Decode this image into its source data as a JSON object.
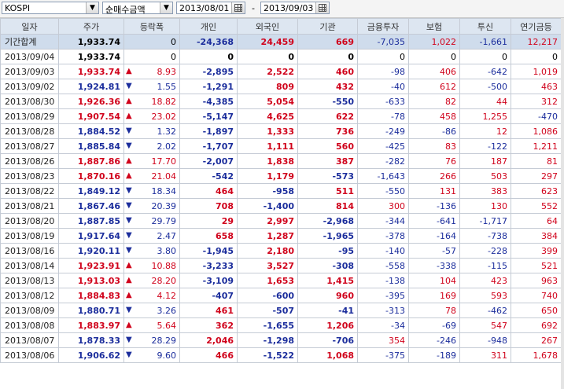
{
  "toolbar": {
    "market": "KOSPI",
    "metric": "순매수금액",
    "date_from": "2013/08/01",
    "date_sep": "-",
    "date_to": "2013/09/03"
  },
  "columns": [
    "일자",
    "주가",
    "등락폭",
    "개인",
    "외국인",
    "기관",
    "금융투자",
    "보험",
    "투신",
    "연기금등"
  ],
  "colors": {
    "up": "#d0021b",
    "down": "#1b2d9c",
    "header_bg": "#dde6f1",
    "total_bg": "#cfdcec"
  },
  "rows": [
    {
      "date": "기간합계",
      "price": "1,933.74",
      "price_dir": "none",
      "dir": "none",
      "chg": "0",
      "indiv": "-24,368",
      "foreign": "24,459",
      "inst": "669",
      "fin": "-7,035",
      "ins": "1,022",
      "trust": "-1,661",
      "pension": "12,217"
    },
    {
      "date": "2013/09/04",
      "price": "1,933.74",
      "price_dir": "none",
      "dir": "none",
      "chg": "0",
      "indiv": "0",
      "foreign": "0",
      "inst": "0",
      "fin": "0",
      "ins": "0",
      "trust": "0",
      "pension": "0"
    },
    {
      "date": "2013/09/03",
      "price": "1,933.74",
      "price_dir": "up",
      "dir": "up",
      "chg": "8.93",
      "indiv": "-2,895",
      "foreign": "2,522",
      "inst": "460",
      "fin": "-98",
      "ins": "406",
      "trust": "-642",
      "pension": "1,019"
    },
    {
      "date": "2013/09/02",
      "price": "1,924.81",
      "price_dir": "down",
      "dir": "down",
      "chg": "1.55",
      "indiv": "-1,291",
      "foreign": "809",
      "inst": "432",
      "fin": "-40",
      "ins": "612",
      "trust": "-500",
      "pension": "463"
    },
    {
      "date": "2013/08/30",
      "price": "1,926.36",
      "price_dir": "up",
      "dir": "up",
      "chg": "18.82",
      "indiv": "-4,385",
      "foreign": "5,054",
      "inst": "-550",
      "fin": "-633",
      "ins": "82",
      "trust": "44",
      "pension": "312"
    },
    {
      "date": "2013/08/29",
      "price": "1,907.54",
      "price_dir": "up",
      "dir": "up",
      "chg": "23.02",
      "indiv": "-5,147",
      "foreign": "4,625",
      "inst": "622",
      "fin": "-78",
      "ins": "458",
      "trust": "1,255",
      "pension": "-470"
    },
    {
      "date": "2013/08/28",
      "price": "1,884.52",
      "price_dir": "down",
      "dir": "down",
      "chg": "1.32",
      "indiv": "-1,897",
      "foreign": "1,333",
      "inst": "736",
      "fin": "-249",
      "ins": "-86",
      "trust": "12",
      "pension": "1,086"
    },
    {
      "date": "2013/08/27",
      "price": "1,885.84",
      "price_dir": "down",
      "dir": "down",
      "chg": "2.02",
      "indiv": "-1,707",
      "foreign": "1,111",
      "inst": "560",
      "fin": "-425",
      "ins": "83",
      "trust": "-122",
      "pension": "1,211"
    },
    {
      "date": "2013/08/26",
      "price": "1,887.86",
      "price_dir": "up",
      "dir": "up",
      "chg": "17.70",
      "indiv": "-2,007",
      "foreign": "1,838",
      "inst": "387",
      "fin": "-282",
      "ins": "76",
      "trust": "187",
      "pension": "81"
    },
    {
      "date": "2013/08/23",
      "price": "1,870.16",
      "price_dir": "up",
      "dir": "up",
      "chg": "21.04",
      "indiv": "-542",
      "foreign": "1,179",
      "inst": "-573",
      "fin": "-1,643",
      "ins": "266",
      "trust": "503",
      "pension": "297"
    },
    {
      "date": "2013/08/22",
      "price": "1,849.12",
      "price_dir": "down",
      "dir": "down",
      "chg": "18.34",
      "indiv": "464",
      "foreign": "-958",
      "inst": "511",
      "fin": "-550",
      "ins": "131",
      "trust": "383",
      "pension": "623"
    },
    {
      "date": "2013/08/21",
      "price": "1,867.46",
      "price_dir": "down",
      "dir": "down",
      "chg": "20.39",
      "indiv": "708",
      "foreign": "-1,400",
      "inst": "814",
      "fin": "300",
      "ins": "-136",
      "trust": "130",
      "pension": "552"
    },
    {
      "date": "2013/08/20",
      "price": "1,887.85",
      "price_dir": "down",
      "dir": "down",
      "chg": "29.79",
      "indiv": "29",
      "foreign": "2,997",
      "inst": "-2,968",
      "fin": "-344",
      "ins": "-641",
      "trust": "-1,717",
      "pension": "64"
    },
    {
      "date": "2013/08/19",
      "price": "1,917.64",
      "price_dir": "down",
      "dir": "down",
      "chg": "2.47",
      "indiv": "658",
      "foreign": "1,287",
      "inst": "-1,965",
      "fin": "-378",
      "ins": "-164",
      "trust": "-738",
      "pension": "384"
    },
    {
      "date": "2013/08/16",
      "price": "1,920.11",
      "price_dir": "down",
      "dir": "down",
      "chg": "3.80",
      "indiv": "-1,945",
      "foreign": "2,180",
      "inst": "-95",
      "fin": "-140",
      "ins": "-57",
      "trust": "-228",
      "pension": "399"
    },
    {
      "date": "2013/08/14",
      "price": "1,923.91",
      "price_dir": "up",
      "dir": "up",
      "chg": "10.88",
      "indiv": "-3,233",
      "foreign": "3,527",
      "inst": "-308",
      "fin": "-558",
      "ins": "-338",
      "trust": "-115",
      "pension": "521"
    },
    {
      "date": "2013/08/13",
      "price": "1,913.03",
      "price_dir": "up",
      "dir": "up",
      "chg": "28.20",
      "indiv": "-3,109",
      "foreign": "1,653",
      "inst": "1,415",
      "fin": "-138",
      "ins": "104",
      "trust": "423",
      "pension": "963"
    },
    {
      "date": "2013/08/12",
      "price": "1,884.83",
      "price_dir": "up",
      "dir": "up",
      "chg": "4.12",
      "indiv": "-407",
      "foreign": "-600",
      "inst": "960",
      "fin": "-395",
      "ins": "169",
      "trust": "593",
      "pension": "740"
    },
    {
      "date": "2013/08/09",
      "price": "1,880.71",
      "price_dir": "down",
      "dir": "down",
      "chg": "3.26",
      "indiv": "461",
      "foreign": "-507",
      "inst": "-41",
      "fin": "-313",
      "ins": "78",
      "trust": "-462",
      "pension": "650"
    },
    {
      "date": "2013/08/08",
      "price": "1,883.97",
      "price_dir": "up",
      "dir": "up",
      "chg": "5.64",
      "indiv": "362",
      "foreign": "-1,655",
      "inst": "1,206",
      "fin": "-34",
      "ins": "-69",
      "trust": "547",
      "pension": "692"
    },
    {
      "date": "2013/08/07",
      "price": "1,878.33",
      "price_dir": "down",
      "dir": "down",
      "chg": "28.29",
      "indiv": "2,046",
      "foreign": "-1,298",
      "inst": "-706",
      "fin": "354",
      "ins": "-246",
      "trust": "-948",
      "pension": "267"
    },
    {
      "date": "2013/08/06",
      "price": "1,906.62",
      "price_dir": "down",
      "dir": "down",
      "chg": "9.60",
      "indiv": "466",
      "foreign": "-1,522",
      "inst": "1,068",
      "fin": "-375",
      "ins": "-189",
      "trust": "311",
      "pension": "1,678"
    }
  ]
}
